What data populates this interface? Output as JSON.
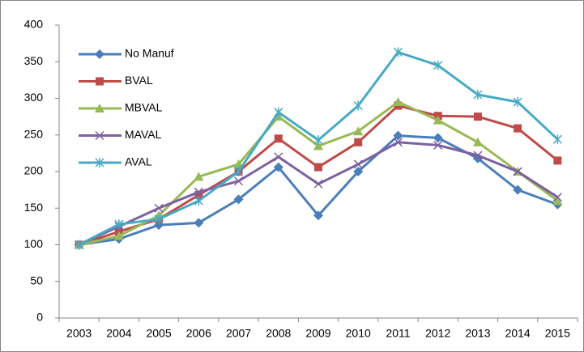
{
  "chart_data": {
    "type": "line",
    "categories": [
      "2003",
      "2004",
      "2005",
      "2006",
      "2007",
      "2008",
      "2009",
      "2010",
      "2011",
      "2012",
      "2013",
      "2014",
      "2015"
    ],
    "series": [
      {
        "name": "No Manuf",
        "color": "#4a7ebb",
        "marker": "diamond",
        "values": [
          100,
          108,
          127,
          130,
          162,
          206,
          140,
          200,
          249,
          246,
          218,
          175,
          155
        ]
      },
      {
        "name": "BVAL",
        "color": "#be4b48",
        "marker": "square",
        "values": [
          100,
          118,
          135,
          168,
          200,
          245,
          206,
          240,
          290,
          276,
          275,
          259,
          215
        ]
      },
      {
        "name": "MBVAL",
        "color": "#98b954",
        "marker": "triangle",
        "values": [
          100,
          112,
          140,
          193,
          210,
          275,
          235,
          255,
          295,
          270,
          240,
          200,
          160
        ]
      },
      {
        "name": "MAVAL",
        "color": "#7d60a0",
        "marker": "x",
        "values": [
          100,
          125,
          150,
          172,
          187,
          220,
          183,
          210,
          240,
          236,
          222,
          200,
          165
        ]
      },
      {
        "name": "AVAL",
        "color": "#46aac5",
        "marker": "asterisk",
        "values": [
          100,
          128,
          135,
          160,
          200,
          281,
          243,
          290,
          363,
          345,
          305,
          295,
          244
        ]
      }
    ],
    "ylim": [
      0,
      400
    ],
    "yticks": [
      0,
      50,
      100,
      150,
      200,
      250,
      300,
      350,
      400
    ],
    "grid": false,
    "legend": "top-left"
  }
}
